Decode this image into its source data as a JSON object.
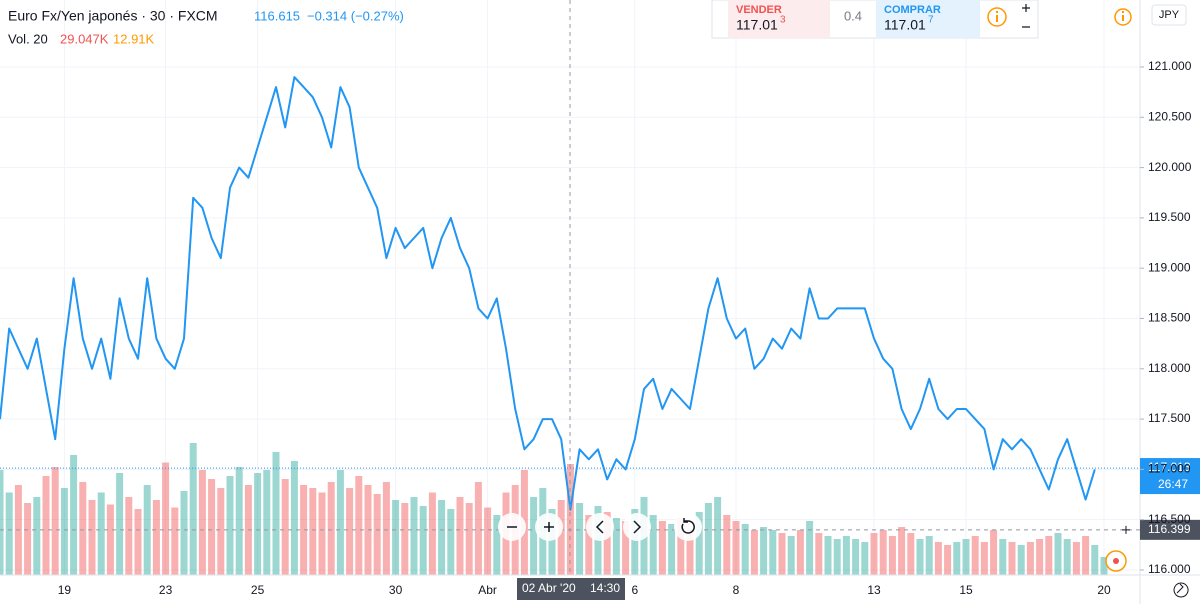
{
  "chart_data": {
    "type": "line",
    "title": "Euro Fx/Yen japonés · 30 · FXCM",
    "last_price": 116.615,
    "change": "−0.314 (−0.27%)",
    "volume_title": "Vol. 20",
    "volume_readouts": [
      "29.047K",
      "12.91K"
    ],
    "currency": "JPY",
    "categories": [
      null,
      null,
      null,
      null,
      null,
      null,
      null,
      "19",
      null,
      null,
      null,
      null,
      null,
      null,
      null,
      null,
      null,
      null,
      "23",
      null,
      null,
      null,
      null,
      null,
      null,
      null,
      null,
      null,
      "25",
      null,
      null,
      null,
      null,
      null,
      null,
      null,
      null,
      null,
      null,
      null,
      null,
      null,
      null,
      "30",
      null,
      null,
      null,
      null,
      null,
      null,
      null,
      null,
      null,
      "Abr",
      null,
      null,
      null,
      null,
      null,
      null,
      null,
      null,
      null,
      null,
      null,
      null,
      null,
      null,
      null,
      "6",
      null,
      null,
      null,
      null,
      null,
      null,
      null,
      null,
      null,
      null,
      "8",
      null,
      null,
      null,
      null,
      null,
      null,
      null,
      null,
      null,
      null,
      null,
      null,
      null,
      null,
      "13",
      null,
      null,
      null,
      null,
      null,
      null,
      null,
      null,
      null,
      "15",
      null,
      null,
      null,
      null,
      null,
      null,
      null,
      null,
      null,
      null,
      null,
      null,
      null,
      null,
      "20"
    ],
    "series": [
      {
        "color": "#2196f3",
        "values": [
          117.5,
          118.4,
          118.2,
          118.0,
          118.3,
          117.8,
          117.3,
          118.2,
          118.9,
          118.3,
          118.0,
          118.3,
          117.9,
          118.7,
          118.3,
          118.1,
          118.9,
          118.3,
          118.1,
          118.0,
          118.3,
          119.7,
          119.6,
          119.3,
          119.1,
          119.8,
          120.0,
          119.9,
          120.2,
          120.5,
          120.8,
          120.4,
          120.9,
          120.8,
          120.7,
          120.5,
          120.2,
          120.8,
          120.6,
          120.0,
          119.8,
          119.6,
          119.1,
          119.4,
          119.2,
          119.3,
          119.4,
          119.0,
          119.3,
          119.5,
          119.2,
          119.0,
          118.6,
          118.5,
          118.7,
          118.2,
          117.6,
          117.2,
          117.3,
          117.5,
          117.5,
          117.3,
          116.6,
          117.2,
          117.1,
          117.2,
          116.9,
          117.1,
          117.0,
          117.3,
          117.8,
          117.9,
          117.6,
          117.8,
          117.7,
          117.6,
          118.1,
          118.6,
          118.9,
          118.5,
          118.3,
          118.4,
          118.0,
          118.1,
          118.3,
          118.2,
          118.4,
          118.3,
          118.8,
          118.5,
          118.5,
          118.6,
          118.6,
          118.6,
          118.6,
          118.3,
          118.1,
          118.0,
          117.6,
          117.4,
          117.6,
          117.9,
          117.6,
          117.5,
          117.6,
          117.6,
          117.5,
          117.4,
          117.0,
          117.3,
          117.2,
          117.3,
          117.2,
          117.0,
          116.8,
          117.1,
          117.3,
          117.0,
          116.7,
          117.0,
          null
        ]
      }
    ],
    "volume": {
      "up_color": "rgba(38,166,154,0.45)",
      "down_color": "rgba(239,83,80,0.45)",
      "ylim": [
        0,
        100
      ],
      "values": [
        70,
        55,
        60,
        48,
        52,
        66,
        72,
        58,
        80,
        62,
        50,
        55,
        47,
        68,
        52,
        44,
        60,
        50,
        75,
        45,
        56,
        88,
        70,
        64,
        58,
        66,
        72,
        60,
        68,
        70,
        82,
        64,
        76,
        60,
        58,
        55,
        62,
        70,
        58,
        66,
        60,
        54,
        62,
        50,
        48,
        52,
        46,
        55,
        50,
        44,
        52,
        48,
        62,
        45,
        40,
        55,
        60,
        70,
        52,
        58,
        44,
        50,
        74,
        48,
        40,
        46,
        42,
        38,
        36,
        44,
        52,
        40,
        36,
        34,
        38,
        30,
        42,
        48,
        52,
        40,
        36,
        34,
        30,
        32,
        30,
        28,
        26,
        30,
        36,
        28,
        26,
        24,
        26,
        24,
        22,
        28,
        30,
        26,
        32,
        28,
        24,
        26,
        22,
        20,
        22,
        24,
        26,
        22,
        30,
        24,
        22,
        20,
        22,
        24,
        26,
        28,
        24,
        22,
        26,
        20,
        12
      ]
    },
    "ylim": [
      115.95,
      121.666
    ],
    "yticks": [
      {
        "value": 116,
        "label": "116.000"
      },
      {
        "value": 116.5,
        "label": "116.500"
      },
      {
        "value": 117,
        "label": "117.000"
      },
      {
        "value": 117.5,
        "label": "117.500"
      },
      {
        "value": 118,
        "label": "118.000"
      },
      {
        "value": 118.5,
        "label": "118.500"
      },
      {
        "value": 119,
        "label": "119.000"
      },
      {
        "value": 119.5,
        "label": "119.500"
      },
      {
        "value": 120,
        "label": "120.000"
      },
      {
        "value": 120.5,
        "label": "120.500"
      },
      {
        "value": 121,
        "label": "121.000"
      }
    ],
    "grid": true,
    "price_line": {
      "value": 117.013,
      "countdown": "26:47"
    },
    "crosshair": {
      "value": 116.399,
      "date": "02 Abr '20",
      "time": "14:30"
    },
    "trade": {
      "sell_label": "VENDER",
      "sell_price": "117.01",
      "sell_sup": "3",
      "spread": "0.4",
      "buy_label": "COMPRAR",
      "buy_price": "117.01",
      "buy_sup": "7"
    }
  }
}
